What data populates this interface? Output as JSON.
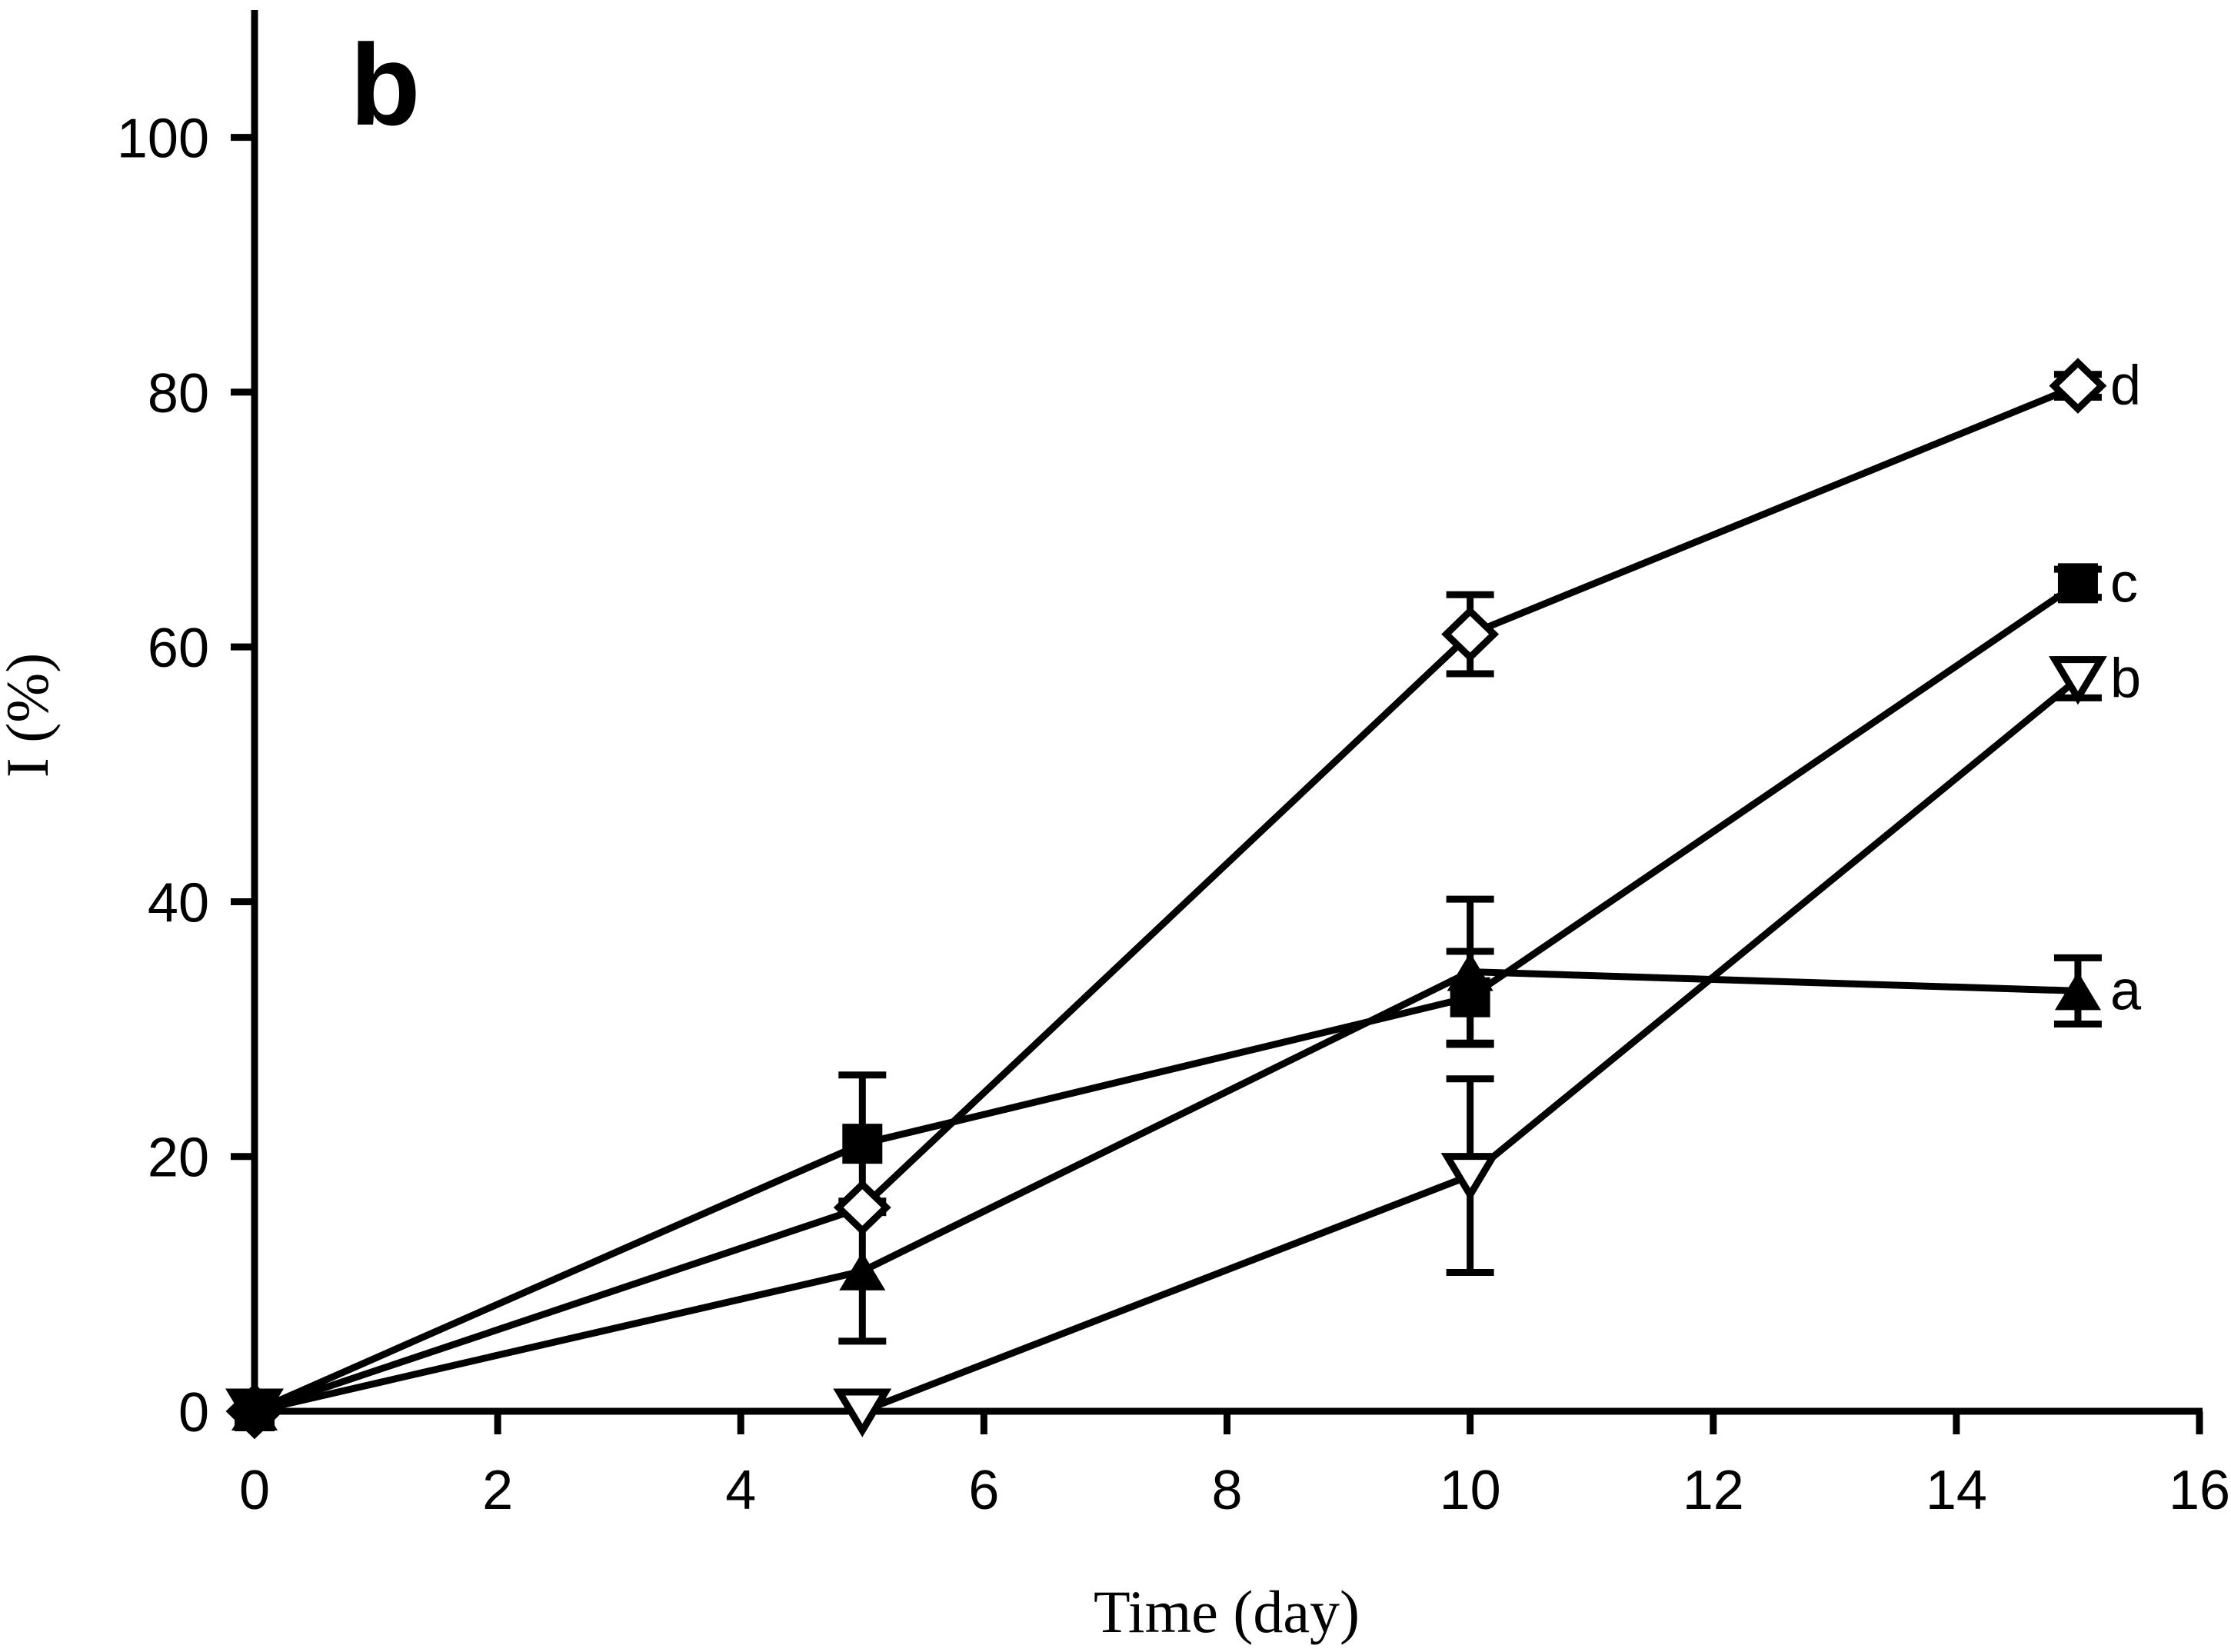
{
  "figure": {
    "panel_label": "b"
  },
  "chart_data": {
    "type": "line",
    "title": "",
    "xlabel": "Time (day)",
    "ylabel": "I (%)",
    "xlim": [
      0,
      16
    ],
    "ylim": [
      0,
      110
    ],
    "x_ticks": [
      0,
      2,
      4,
      6,
      8,
      10,
      12,
      14,
      16
    ],
    "y_ticks": [
      0,
      20,
      40,
      60,
      80,
      100
    ],
    "grid": false,
    "legend_position": "labels-right-of-last-point",
    "colors": {
      "ink": "#000000",
      "background": "#ffffff"
    },
    "x": [
      0,
      5,
      10,
      15
    ],
    "series": [
      {
        "name": "d",
        "label": "d",
        "marker": "diamond-open",
        "z": 1,
        "values": [
          0,
          16,
          61,
          80.5
        ],
        "errors": [
          null,
          null,
          3.1,
          0.9
        ]
      },
      {
        "name": "b",
        "label": "b",
        "marker": "triangle-down-open",
        "z": 2,
        "values": [
          0,
          0,
          18.5,
          57.5
        ],
        "errors": [
          null,
          null,
          7.6,
          1.5
        ]
      },
      {
        "name": "c",
        "label": "c",
        "marker": "square-filled",
        "z": 3,
        "values": [
          0,
          21,
          32.5,
          65
        ],
        "errors": [
          null,
          5.4,
          3.6,
          1.1
        ]
      },
      {
        "name": "a",
        "label": "a",
        "marker": "triangle-up-filled",
        "z": 4,
        "values": [
          0,
          11,
          34.5,
          33
        ],
        "errors": [
          null,
          5.5,
          5.7,
          2.6
        ]
      }
    ]
  }
}
